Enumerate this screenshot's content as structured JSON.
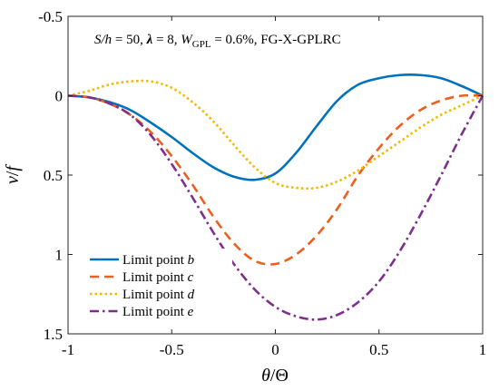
{
  "chart_data": {
    "type": "line",
    "annotation": {
      "p1": "S/h",
      "p2": " = 50,  ",
      "lambda": "λ",
      "p3": " = 8,  ",
      "w": "W",
      "wsub": "GPL",
      "p4": " = 0.6%, FG-X-GPLRC"
    },
    "xlabel": {
      "theta": "θ",
      "slash": "/",
      "cap": "Θ"
    },
    "ylabel": {
      "v": "v",
      "slash": "/",
      "f": "f"
    },
    "xlim": [
      -1,
      1
    ],
    "ylim": [
      -0.5,
      1.5
    ],
    "y_reversed": true,
    "grid": false,
    "legend_position": "bottom-left",
    "xticks": [
      {
        "value": -1,
        "label": "-1"
      },
      {
        "value": -0.5,
        "label": "-0.5"
      },
      {
        "value": 0,
        "label": "0"
      },
      {
        "value": 0.5,
        "label": "0.5"
      },
      {
        "value": 1,
        "label": "1"
      }
    ],
    "yticks": [
      {
        "value": -0.5,
        "label": "-0.5"
      },
      {
        "value": 0,
        "label": "0"
      },
      {
        "value": 0.5,
        "label": "0.5"
      },
      {
        "value": 1,
        "label": "1"
      },
      {
        "value": 1.5,
        "label": "1.5"
      }
    ],
    "x": [
      -1,
      -0.9,
      -0.8,
      -0.7,
      -0.6,
      -0.5,
      -0.4,
      -0.3,
      -0.2,
      -0.1,
      0,
      0.1,
      0.2,
      0.3,
      0.4,
      0.5,
      0.6,
      0.7,
      0.8,
      0.9,
      1
    ],
    "series": [
      {
        "name": "Limit point ",
        "name_italic": "b",
        "color": "#0072BD",
        "dash": "solid",
        "values": [
          0,
          0.01,
          0.04,
          0.09,
          0.17,
          0.26,
          0.36,
          0.45,
          0.51,
          0.53,
          0.49,
          0.36,
          0.19,
          0.03,
          -0.07,
          -0.11,
          -0.13,
          -0.13,
          -0.11,
          -0.06,
          0
        ]
      },
      {
        "name": "Limit point ",
        "name_italic": "c",
        "color": "#ED5F1E",
        "dash": "dashed",
        "values": [
          0,
          0.01,
          0.05,
          0.12,
          0.23,
          0.38,
          0.56,
          0.76,
          0.93,
          1.04,
          1.06,
          1.0,
          0.88,
          0.71,
          0.5,
          0.33,
          0.19,
          0.09,
          0.03,
          0,
          0
        ]
      },
      {
        "name": "Limit point ",
        "name_italic": "d",
        "color": "#F5B800",
        "dash": "dotted",
        "values": [
          0,
          -0.03,
          -0.07,
          -0.09,
          -0.09,
          -0.05,
          0.04,
          0.16,
          0.31,
          0.45,
          0.55,
          0.58,
          0.58,
          0.54,
          0.47,
          0.38,
          0.29,
          0.2,
          0.12,
          0.06,
          0
        ]
      },
      {
        "name": "Limit point ",
        "name_italic": "e",
        "color": "#7E2F8E",
        "dash": "dashdot",
        "values": [
          0,
          0.01,
          0.05,
          0.12,
          0.25,
          0.43,
          0.64,
          0.86,
          1.06,
          1.22,
          1.33,
          1.39,
          1.41,
          1.38,
          1.3,
          1.17,
          0.98,
          0.75,
          0.5,
          0.24,
          0
        ]
      }
    ]
  }
}
